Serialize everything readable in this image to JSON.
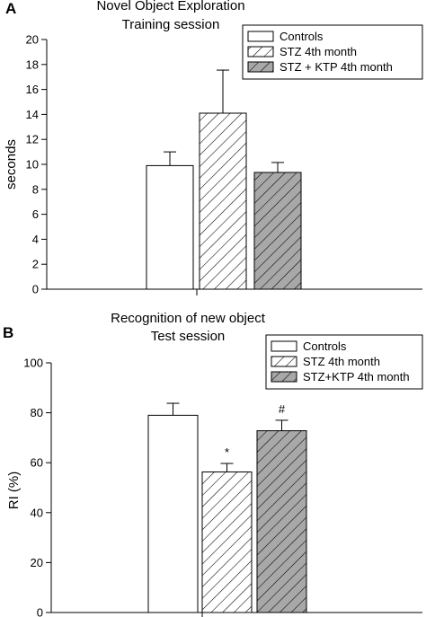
{
  "panels": [
    {
      "letter": "A",
      "title_lines": [
        "Novel Object Exploration",
        "Training session"
      ],
      "ylabel": "seconds",
      "yticks": [
        0,
        2,
        4,
        6,
        8,
        10,
        12,
        14,
        16,
        18,
        20
      ],
      "legend": [
        "Controls",
        "STZ 4th month",
        "STZ + KTP 4th month"
      ]
    },
    {
      "letter": "B",
      "title_lines": [
        "Recognition of new object",
        "Test session"
      ],
      "ylabel": "RI (%)",
      "yticks": [
        0,
        20,
        40,
        60,
        80,
        100
      ],
      "legend": [
        "Controls",
        "STZ 4th month",
        "STZ+KTP 4th month"
      ]
    }
  ],
  "chart_data": [
    {
      "type": "bar",
      "title": "Novel Object Exploration Training session",
      "xlabel": "",
      "ylabel": "seconds",
      "ylim": [
        0,
        20
      ],
      "legend_position": "top-right",
      "categories": [
        "Controls",
        "STZ 4th month",
        "STZ + KTP 4th month"
      ],
      "values": [
        9.9,
        14.1,
        9.35
      ],
      "error_upper": [
        11.0,
        17.55,
        10.15
      ],
      "fills": [
        "white",
        "hatched",
        "gray-hatched"
      ],
      "annotations": [
        "",
        "",
        ""
      ]
    },
    {
      "type": "bar",
      "title": "Recognition of new object Test session",
      "xlabel": "",
      "ylabel": "RI (%)",
      "ylim": [
        0,
        100
      ],
      "legend_position": "top-right",
      "categories": [
        "Controls",
        "STZ 4th month",
        "STZ+KTP 4th month"
      ],
      "values": [
        79,
        56.3,
        72.8
      ],
      "error_upper": [
        83.8,
        59.7,
        77.0
      ],
      "fills": [
        "white",
        "hatched",
        "gray-hatched"
      ],
      "annotations": [
        "",
        "*",
        "#"
      ]
    }
  ],
  "colors": {
    "axis": "#000000",
    "bar_white": "#ffffff",
    "bar_gray": "#a8a8a8",
    "hatch": "#000000"
  }
}
